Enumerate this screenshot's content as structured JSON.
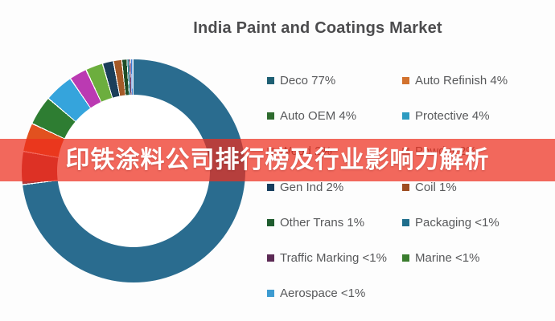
{
  "title": "India Paint and Coatings Market",
  "banner": {
    "text": "印铁涂料公司排行榜及行业影响力解析",
    "bg_color": "#ED2E1D",
    "text_color": "#FFFFFF"
  },
  "colors": {
    "page_background": "#FDFDFD",
    "title_text": "#4C4C4E",
    "legend_text": "#58595B",
    "donut_hole": "#FFFFFF"
  },
  "chart_data": {
    "type": "pie",
    "subtype": "donut",
    "title": "India Paint and Coatings Market",
    "legend_position": "right",
    "segments": [
      {
        "label": "Deco",
        "display": "77%",
        "value": 77,
        "color": "#2A6C8F",
        "start": 0,
        "end": 262.6
      },
      {
        "label": "Auto Refinish",
        "display": "4%",
        "value": 4,
        "color": "#B23A3C",
        "start": 263.2,
        "end": 279.8
      },
      {
        "label": "Auto OEM",
        "display": "4%",
        "value": 4,
        "color": "#E2511F",
        "start": 280.4,
        "end": 294.8
      },
      {
        "label": "Protective",
        "display": "4%",
        "value": 4,
        "color": "#2E7D32",
        "start": 295.4,
        "end": 310.2
      },
      {
        "label": "Wood",
        "display": "2%",
        "value": 2,
        "color": "#35A4DC",
        "start": 310.8,
        "end": 325.4
      },
      {
        "label": "Powder",
        "display": "2%",
        "value": 2,
        "color": "#BB3AB2",
        "start": 326.0,
        "end": 334.6
      },
      {
        "label": "Gen Ind",
        "display": "2%",
        "value": 2,
        "color": "#6CAE3E",
        "start": 335.2,
        "end": 343.6
      },
      {
        "label": "Coil",
        "display": "1%",
        "value": 1,
        "color": "#1B3E5A",
        "start": 344.2,
        "end": 349.3
      },
      {
        "label": "Other Trans",
        "display": "1%",
        "value": 1,
        "color": "#A55A28",
        "start": 349.9,
        "end": 353.7
      },
      {
        "label": "Packaging",
        "display": "<1%",
        "value": 0.8,
        "color": "#1E4D26",
        "start": 354.2,
        "end": 356.4
      },
      {
        "label": "Traffic Marking",
        "display": "<1%",
        "value": 0.5,
        "color": "#1F7A8C",
        "start": 356.8,
        "end": 357.5
      },
      {
        "label": "Marine",
        "display": "<1%",
        "value": 0.5,
        "color": "#6B2D5B",
        "start": 357.8,
        "end": 358.4
      },
      {
        "label": "Aerospace",
        "display": "<1%",
        "value": 0.5,
        "color": "#3B7DD8",
        "start": 358.7,
        "end": 359.3
      }
    ]
  },
  "legend": {
    "columns": 2,
    "items": [
      {
        "label": "Deco 77%",
        "marker_color": "#1E5F73",
        "obscured": false
      },
      {
        "label": "Auto Refinish 4%",
        "marker_color": "#D2722E",
        "obscured": false
      },
      {
        "label": "Auto OEM 4%",
        "marker_color": "#2E6B2E",
        "obscured": false
      },
      {
        "label": "Protective 4%",
        "marker_color": "#2D9BC1",
        "obscured": false
      },
      {
        "label": "Wood 2%",
        "marker_color": "#9E9E9E",
        "obscured": true
      },
      {
        "label": "Powder 2%",
        "marker_color": "#9E9E9E",
        "obscured": true
      },
      {
        "label": "Gen Ind 2%",
        "marker_color": "#173F5F",
        "obscured": false
      },
      {
        "label": "Coil 1%",
        "marker_color": "#9E4E22",
        "obscured": false
      },
      {
        "label": "Other Trans 1%",
        "marker_color": "#1F5C2E",
        "obscured": false
      },
      {
        "label": "Packaging <1%",
        "marker_color": "#1F6E8C",
        "obscured": false
      },
      {
        "label": "Traffic Marking <1%",
        "marker_color": "#5C2A55",
        "obscured": false
      },
      {
        "label": "Marine <1%",
        "marker_color": "#3A7D2E",
        "obscured": false
      },
      {
        "label": "Aerospace <1%",
        "marker_color": "#3D9BD1",
        "obscured": false
      }
    ]
  }
}
